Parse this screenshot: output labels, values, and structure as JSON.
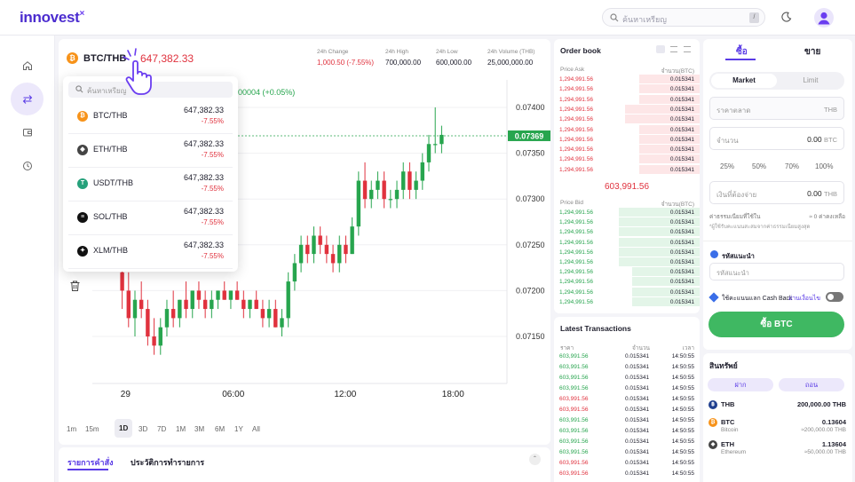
{
  "header": {
    "logo_main": "innovest",
    "logo_x": "×",
    "search_placeholder": "ค้นหาเหรียญ",
    "search_shortcut": "/"
  },
  "pair": {
    "symbol": "BTC/THB",
    "price": "647,382.33",
    "change_label": "24h Change",
    "change_value": "1,000.50 (-7.55%)",
    "high_label": "24h High",
    "high_value": "700,000.00",
    "low_label": "24h Low",
    "low_value": "600,000.00",
    "volume_label": "24h Volume (THB)",
    "volume_value": "25,000,000.00",
    "chart_change": "00004 (+0.05%)"
  },
  "dropdown": {
    "search_placeholder": "ค้นหาเหรียญ",
    "items": [
      {
        "symbol": "BTC/THB",
        "price": "647,382.33",
        "change": "-7.55%",
        "color": "#f7931a",
        "glyph": "₿"
      },
      {
        "symbol": "ETH/THB",
        "price": "647,382.33",
        "change": "-7.55%",
        "color": "#444444",
        "glyph": "◆"
      },
      {
        "symbol": "USDT/THB",
        "price": "647,382.33",
        "change": "-7.55%",
        "color": "#26a17b",
        "glyph": "T"
      },
      {
        "symbol": "SOL/THB",
        "price": "647,382.33",
        "change": "-7.55%",
        "color": "#111111",
        "glyph": "≡"
      },
      {
        "symbol": "XLM/THB",
        "price": "647,382.33",
        "change": "-7.55%",
        "color": "#111111",
        "glyph": "✦"
      }
    ]
  },
  "chart_data": {
    "type": "candlestick",
    "y_ticks": [
      "0.07400",
      "0.07350",
      "0.07300",
      "0.07250",
      "0.07200",
      "0.07150"
    ],
    "x_ticks": [
      "29",
      "06:00",
      "12:00",
      "18:00"
    ],
    "current_price": "0.07369",
    "ylim": [
      0.0712,
      0.0743
    ],
    "candles": [
      [
        0.0722,
        0.0724,
        0.0718,
        0.072
      ],
      [
        0.072,
        0.0722,
        0.0716,
        0.0717
      ],
      [
        0.0717,
        0.072,
        0.0715,
        0.0719
      ],
      [
        0.0719,
        0.0721,
        0.0717,
        0.0718
      ],
      [
        0.0718,
        0.0719,
        0.0714,
        0.0715
      ],
      [
        0.0715,
        0.0717,
        0.0713,
        0.0714
      ],
      [
        0.0714,
        0.0717,
        0.0713,
        0.0716
      ],
      [
        0.0716,
        0.0719,
        0.0715,
        0.0718
      ],
      [
        0.0718,
        0.072,
        0.0716,
        0.0717
      ],
      [
        0.0717,
        0.0719,
        0.0716,
        0.0719
      ],
      [
        0.0719,
        0.0721,
        0.0717,
        0.0718
      ],
      [
        0.0718,
        0.072,
        0.0717,
        0.072
      ],
      [
        0.072,
        0.0721,
        0.0718,
        0.0719
      ],
      [
        0.0719,
        0.072,
        0.0717,
        0.0718
      ],
      [
        0.0718,
        0.072,
        0.0717,
        0.0719
      ],
      [
        0.0719,
        0.072,
        0.0718,
        0.072
      ],
      [
        0.072,
        0.0721,
        0.0719,
        0.0719
      ],
      [
        0.0719,
        0.072,
        0.0718,
        0.072
      ],
      [
        0.072,
        0.0721,
        0.0719,
        0.0719
      ],
      [
        0.0719,
        0.072,
        0.0717,
        0.0718
      ],
      [
        0.0718,
        0.0719,
        0.0717,
        0.0719
      ],
      [
        0.0719,
        0.072,
        0.0718,
        0.0718
      ],
      [
        0.0718,
        0.0719,
        0.0716,
        0.0717
      ],
      [
        0.0717,
        0.0719,
        0.0716,
        0.0718
      ],
      [
        0.0718,
        0.0719,
        0.0716,
        0.0716
      ],
      [
        0.0716,
        0.0718,
        0.0715,
        0.0717
      ],
      [
        0.0717,
        0.0722,
        0.0716,
        0.0721
      ],
      [
        0.0721,
        0.0724,
        0.072,
        0.0723
      ],
      [
        0.0723,
        0.0726,
        0.0722,
        0.0725
      ],
      [
        0.0725,
        0.0726,
        0.0723,
        0.0724
      ],
      [
        0.0724,
        0.0727,
        0.0723,
        0.0726
      ],
      [
        0.0726,
        0.0727,
        0.0724,
        0.0725
      ],
      [
        0.0725,
        0.0726,
        0.0723,
        0.0724
      ],
      [
        0.0724,
        0.0725,
        0.0722,
        0.0723
      ],
      [
        0.0723,
        0.0726,
        0.0722,
        0.0725
      ],
      [
        0.0725,
        0.0726,
        0.0723,
        0.0724
      ],
      [
        0.0724,
        0.0728,
        0.0724,
        0.0727
      ],
      [
        0.0727,
        0.0733,
        0.0726,
        0.0732
      ],
      [
        0.0732,
        0.0734,
        0.0729,
        0.073
      ],
      [
        0.073,
        0.0732,
        0.0729,
        0.0731
      ],
      [
        0.0731,
        0.0733,
        0.073,
        0.0732
      ],
      [
        0.0732,
        0.0733,
        0.0729,
        0.073
      ],
      [
        0.073,
        0.0731,
        0.0729,
        0.073
      ],
      [
        0.073,
        0.0732,
        0.0729,
        0.0731
      ],
      [
        0.0731,
        0.0734,
        0.073,
        0.0733
      ],
      [
        0.0733,
        0.0734,
        0.073,
        0.0731
      ],
      [
        0.0731,
        0.0733,
        0.073,
        0.0732
      ],
      [
        0.0732,
        0.0735,
        0.0731,
        0.0734
      ],
      [
        0.0734,
        0.0737,
        0.0733,
        0.0736
      ],
      [
        0.0736,
        0.074,
        0.0735,
        0.0736
      ],
      [
        0.0736,
        0.0738,
        0.0735,
        0.0737
      ]
    ]
  },
  "timeframes": [
    "1m",
    "15m",
    "1D",
    "3D",
    "7D",
    "1M",
    "3M",
    "6M",
    "1Y",
    "All"
  ],
  "active_timeframe": "1D",
  "orders_tabs": [
    "รายการคำสั่ง",
    "ประวัติการทำรายการ"
  ],
  "orderbook": {
    "title": "Order book",
    "ask_header_price": "Price Ask",
    "ask_header_amount": "จำนวน(BTC)",
    "bid_header_price": "Price Bid",
    "bid_header_amount": "จำนวน(BTC)",
    "mid_price": "603,991.56",
    "asks": [
      {
        "price": "1,294,991.56",
        "amount": "0.015341",
        "depth": 0.45
      },
      {
        "price": "1,294,991.56",
        "amount": "0.015341",
        "depth": 0.45
      },
      {
        "price": "1,294,991.56",
        "amount": "0.015341",
        "depth": 0.45
      },
      {
        "price": "1,294,991.56",
        "amount": "0.015341",
        "depth": 0.55
      },
      {
        "price": "1,294,991.56",
        "amount": "0.015341",
        "depth": 0.55
      },
      {
        "price": "1,294,991.56",
        "amount": "0.015341",
        "depth": 0.45
      },
      {
        "price": "1,294,991.56",
        "amount": "0.015341",
        "depth": 0.45
      },
      {
        "price": "1,294,991.56",
        "amount": "0.015341",
        "depth": 0.45
      },
      {
        "price": "1,294,991.56",
        "amount": "0.015341",
        "depth": 0.45
      },
      {
        "price": "1,294,991.56",
        "amount": "0.015341",
        "depth": 0.45
      }
    ],
    "bids": [
      {
        "price": "1,294,991.56",
        "amount": "0.015341",
        "depth": 0.6
      },
      {
        "price": "1,294,991.56",
        "amount": "0.015341",
        "depth": 0.6
      },
      {
        "price": "1,294,991.56",
        "amount": "0.015341",
        "depth": 0.6
      },
      {
        "price": "1,294,991.56",
        "amount": "0.015341",
        "depth": 0.6
      },
      {
        "price": "1,294,991.56",
        "amount": "0.015341",
        "depth": 0.6
      },
      {
        "price": "1,294,991.56",
        "amount": "0.015341",
        "depth": 0.6
      },
      {
        "price": "1,294,991.56",
        "amount": "0.015341",
        "depth": 0.5
      },
      {
        "price": "1,294,991.56",
        "amount": "0.015341",
        "depth": 0.5
      },
      {
        "price": "1,294,991.56",
        "amount": "0.015341",
        "depth": 0.5
      },
      {
        "price": "1,294,991.56",
        "amount": "0.015341",
        "depth": 0.5
      }
    ]
  },
  "latest_transactions": {
    "title": "Latest Transactions",
    "header_price": "ราคา",
    "header_amount": "จำนวน",
    "header_time": "เวลา",
    "rows": [
      {
        "price": "603,991.56",
        "amount": "0.015341",
        "time": "14:50:55",
        "side": "buy"
      },
      {
        "price": "603,991.56",
        "amount": "0.015341",
        "time": "14:50:55",
        "side": "buy"
      },
      {
        "price": "603,991.56",
        "amount": "0.015341",
        "time": "14:50:55",
        "side": "buy"
      },
      {
        "price": "603,991.56",
        "amount": "0.015341",
        "time": "14:50:55",
        "side": "buy"
      },
      {
        "price": "603,991.56",
        "amount": "0.015341",
        "time": "14:50:55",
        "side": "sell"
      },
      {
        "price": "603,991.56",
        "amount": "0.015341",
        "time": "14:50:55",
        "side": "sell"
      },
      {
        "price": "603,991.56",
        "amount": "0.015341",
        "time": "14:50:55",
        "side": "buy"
      },
      {
        "price": "603,991.56",
        "amount": "0.015341",
        "time": "14:50:55",
        "side": "buy"
      },
      {
        "price": "603,991.56",
        "amount": "0.015341",
        "time": "14:50:55",
        "side": "buy"
      },
      {
        "price": "603,991.56",
        "amount": "0.015341",
        "time": "14:50:55",
        "side": "buy"
      },
      {
        "price": "603,991.56",
        "amount": "0.015341",
        "time": "14:50:55",
        "side": "sell"
      },
      {
        "price": "603,991.56",
        "amount": "0.015341",
        "time": "14:50:55",
        "side": "sell"
      }
    ]
  },
  "trade": {
    "tab_buy": "ซื้อ",
    "tab_sell": "ขาย",
    "mode_market": "Market",
    "mode_limit": "Limit",
    "price_placeholder": "ราคาตลาด",
    "price_unit": "THB",
    "amount_label": "จำนวน",
    "amount_value": "0.00",
    "amount_unit": "BTC",
    "percents": [
      "25%",
      "50%",
      "70%",
      "100%"
    ],
    "pay_label": "เงินที่ต้องจ่าย",
    "pay_value": "0.00",
    "pay_unit": "THB",
    "fee_label": "ค่าธรรมเนียมที่ใช้ใน",
    "fee_value": "≈ 0 ค่าคงเหลือ",
    "fee_note": "*ผู้ใช้รับคะแนนสะสมจากค่าธรรมเนียมสูงสุด",
    "referral_label": "รหัสแนะนำ",
    "referral_placeholder": "รหัสแนะนำ",
    "cashback_label": "ใช้คะแนนแลก Cash Back",
    "cashback_link": "อ่านเงื่อนไข",
    "submit": "ซื้อ BTC"
  },
  "assets": {
    "title": "สินทรัพย์",
    "deposit": "ฝาก",
    "withdraw": "ถอน",
    "items": [
      {
        "symbol": "THB",
        "name": "",
        "amount": "200,000.00 THB",
        "value": "",
        "color": "#1f3f8f",
        "glyph": "฿"
      },
      {
        "symbol": "BTC",
        "name": "Bitcoin",
        "amount": "0.13604",
        "value": "≈200,000.00 THB",
        "color": "#f7931a",
        "glyph": "₿"
      },
      {
        "symbol": "ETH",
        "name": "Ethereum",
        "amount": "1.13604",
        "value": "≈50,000.00 THB",
        "color": "#444444",
        "glyph": "◆"
      }
    ]
  }
}
